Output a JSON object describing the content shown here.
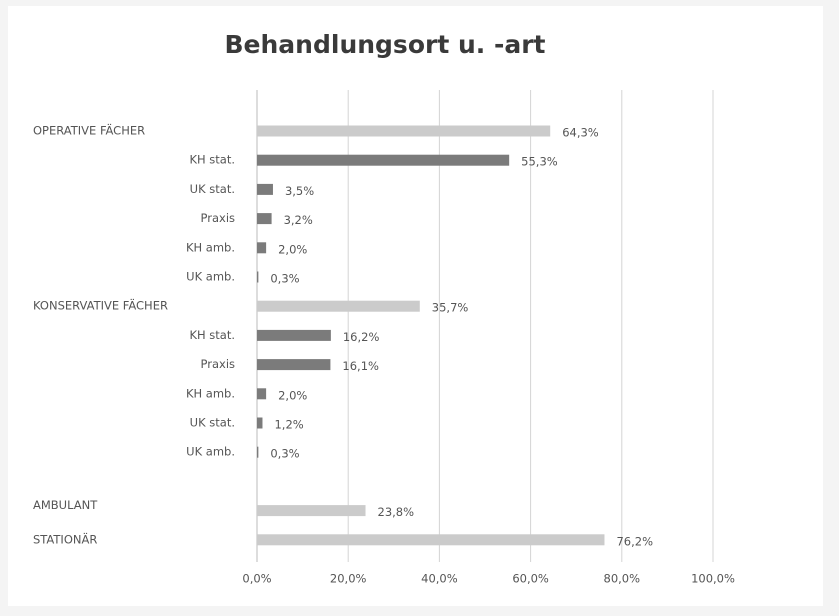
{
  "chart_data": {
    "type": "bar",
    "orientation": "horizontal",
    "title": "Behandlungsort u. -art",
    "categories": [
      "OPERATIVE FÄCHER",
      "KH stat.",
      "UK stat.",
      "Praxis",
      "KH amb.",
      "UK amb.",
      "KONSERVATIVE FÄCHER",
      "KH stat.",
      "Praxis",
      "KH amb.",
      "UK stat.",
      "UK amb.",
      null,
      "AMBULANT",
      "STATIONÄR"
    ],
    "values": [
      64.3,
      55.3,
      3.5,
      3.2,
      2.0,
      0.3,
      35.7,
      16.2,
      16.1,
      2.0,
      1.2,
      0.3,
      null,
      23.8,
      76.2
    ],
    "value_labels": [
      "64,3%",
      "55,3%",
      "3,5%",
      "3,2%",
      "2,0%",
      "0,3%",
      "35,7%",
      "16,2%",
      "16,1%",
      "2,0%",
      "1,2%",
      "0,3%",
      null,
      "23,8%",
      "76,2%"
    ],
    "colors": [
      "#cbcbcb",
      "#7b7b7b",
      "#7b7b7b",
      "#7b7b7b",
      "#7b7b7b",
      "#7b7b7b",
      "#cbcbcb",
      "#7b7b7b",
      "#7b7b7b",
      "#7b7b7b",
      "#7b7b7b",
      "#7b7b7b",
      null,
      "#cbcbcb",
      "#cbcbcb"
    ],
    "xlim": [
      0,
      100
    ],
    "xticks": [
      {
        "value": 0,
        "label": "0,0%"
      },
      {
        "value": 20,
        "label": "20,0%"
      },
      {
        "value": 40,
        "label": "40,0%"
      },
      {
        "value": 60,
        "label": "60,0%"
      },
      {
        "value": 80,
        "label": "80,0%"
      },
      {
        "value": 100,
        "label": "100,0%"
      }
    ],
    "grid": true
  }
}
